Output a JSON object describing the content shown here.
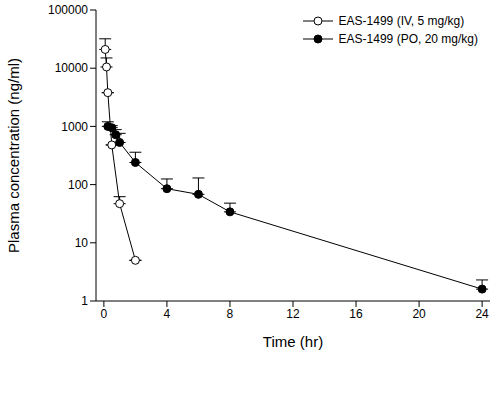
{
  "chart_data": {
    "type": "scatter",
    "x_label": "Time (hr)",
    "y_label": "Plasma concentration (ng/ml)",
    "log": "y",
    "grid": false,
    "legend": "top-right",
    "xlim": [
      -0.5,
      24.5
    ],
    "xticks": [
      0,
      4,
      8,
      12,
      16,
      20,
      24
    ],
    "ylim": [
      1,
      100000
    ],
    "yticks": [
      1,
      10,
      100,
      1000,
      10000,
      100000
    ],
    "series": [
      {
        "name": "EAS-1499 (IV, 5 mg/kg)",
        "color": "#000000",
        "marker": "circle_open",
        "line_style": "solid",
        "x": [
          0.083,
          0.167,
          0.25,
          0.5,
          1,
          2
        ],
        "values": [
          21000,
          10500,
          3800,
          480,
          47,
          5
        ],
        "errors": [
          11000,
          4500,
          0,
          0,
          15,
          0
        ]
      },
      {
        "name": "EAS-1499 (PO, 20 mg/kg)",
        "color": "#000000",
        "marker": "circle",
        "line_style": "solid",
        "x": [
          0.25,
          0.5,
          0.75,
          1,
          2,
          4,
          6,
          8,
          24
        ],
        "values": [
          1000,
          950,
          720,
          530,
          240,
          85,
          68,
          34,
          1.6
        ],
        "errors": [
          200,
          80,
          160,
          230,
          120,
          40,
          62,
          14,
          0.7
        ]
      }
    ]
  }
}
